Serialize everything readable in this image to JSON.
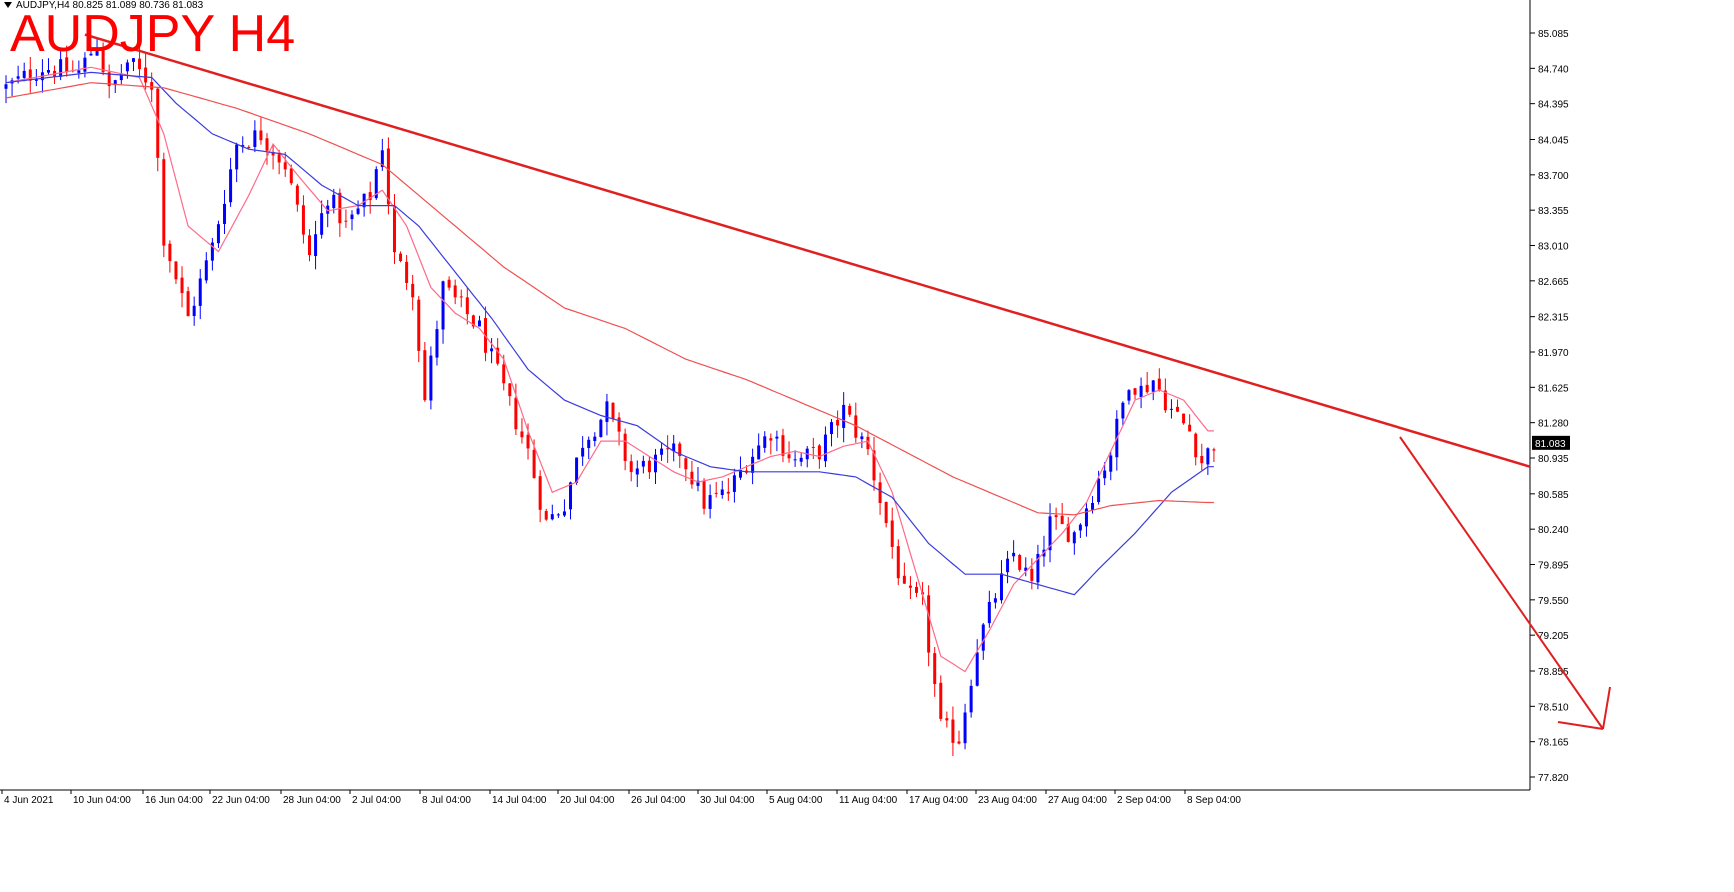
{
  "header": {
    "symbol_line": "AUDJPY,H4  80.825 81.089 80.736 81.083",
    "title": "AUDJPY H4"
  },
  "colors": {
    "bull_candle": "#0000ff",
    "bear_candle": "#ff0000",
    "ma_fast": "#ff6a8a",
    "ma_mid": "#3b3bdf",
    "ma_slow": "#f05050",
    "trendline": "#e02020",
    "arrow": "#e02020",
    "axis": "#000000",
    "price_label_bg": "#000000",
    "price_label_text": "#ffffff"
  },
  "chart_data": {
    "type": "candlestick",
    "title": "AUDJPY H4",
    "current_price": "81.083",
    "ylim": [
      77.6,
      85.3
    ],
    "y_ticks": [
      "85.085",
      "84.740",
      "84.395",
      "84.045",
      "83.700",
      "83.355",
      "83.010",
      "82.665",
      "82.315",
      "81.970",
      "81.625",
      "81.280",
      "80.935",
      "80.585",
      "80.240",
      "79.895",
      "79.550",
      "79.205",
      "78.855",
      "78.510",
      "78.165",
      "77.820"
    ],
    "x_labels": [
      "4 Jun 2021",
      "10 Jun 04:00",
      "16 Jun 04:00",
      "22 Jun 04:00",
      "28 Jun 04:00",
      "2 Jul 04:00",
      "8 Jul 04:00",
      "14 Jul 04:00",
      "20 Jul 04:00",
      "26 Jul 04:00",
      "30 Jul 04:00",
      "5 Aug 04:00",
      "11 Aug 04:00",
      "17 Aug 04:00",
      "23 Aug 04:00",
      "27 Aug 04:00",
      "2 Sep 04:00",
      "8 Sep 04:00"
    ],
    "candle_count": 200,
    "price_path": [
      [
        0,
        84.55
      ],
      [
        6,
        84.75
      ],
      [
        12,
        84.7
      ],
      [
        15,
        85.0
      ],
      [
        17,
        84.5
      ],
      [
        20,
        84.8
      ],
      [
        24,
        84.6
      ],
      [
        26,
        83.1
      ],
      [
        30,
        82.3
      ],
      [
        34,
        83.0
      ],
      [
        38,
        84.0
      ],
      [
        42,
        84.1
      ],
      [
        46,
        83.8
      ],
      [
        50,
        82.9
      ],
      [
        53,
        83.5
      ],
      [
        56,
        83.2
      ],
      [
        60,
        83.5
      ],
      [
        62,
        84.0
      ],
      [
        64,
        82.9
      ],
      [
        67,
        82.6
      ],
      [
        69,
        81.5
      ],
      [
        72,
        82.6
      ],
      [
        75,
        82.4
      ],
      [
        78,
        82.2
      ],
      [
        82,
        81.6
      ],
      [
        86,
        81.0
      ],
      [
        89,
        80.3
      ],
      [
        92,
        80.5
      ],
      [
        95,
        81.1
      ],
      [
        99,
        81.4
      ],
      [
        103,
        80.8
      ],
      [
        107,
        80.9
      ],
      [
        111,
        81.0
      ],
      [
        115,
        80.5
      ],
      [
        119,
        80.6
      ],
      [
        122,
        80.9
      ],
      [
        126,
        81.2
      ],
      [
        130,
        80.9
      ],
      [
        134,
        81.0
      ],
      [
        138,
        81.4
      ],
      [
        142,
        81.0
      ],
      [
        145,
        80.3
      ],
      [
        148,
        79.6
      ],
      [
        151,
        79.5
      ],
      [
        154,
        78.3
      ],
      [
        157,
        78.2
      ],
      [
        160,
        79.1
      ],
      [
        163,
        79.6
      ],
      [
        166,
        80.0
      ],
      [
        169,
        79.7
      ],
      [
        172,
        80.3
      ],
      [
        176,
        80.2
      ],
      [
        179,
        80.6
      ],
      [
        182,
        81.0
      ],
      [
        185,
        81.7
      ],
      [
        187,
        81.6
      ],
      [
        189,
        81.7
      ],
      [
        192,
        81.4
      ],
      [
        195,
        81.2
      ],
      [
        197,
        80.9
      ],
      [
        199,
        81.08
      ]
    ],
    "series": [
      {
        "name": "",
        "kind": "ma",
        "color": "#ff6a8a",
        "values": [
          [
            0,
            84.6
          ],
          [
            14,
            84.75
          ],
          [
            22,
            84.65
          ],
          [
            26,
            84.1
          ],
          [
            30,
            83.2
          ],
          [
            35,
            82.95
          ],
          [
            40,
            83.5
          ],
          [
            44,
            84.0
          ],
          [
            48,
            83.7
          ],
          [
            53,
            83.35
          ],
          [
            58,
            83.4
          ],
          [
            62,
            83.55
          ],
          [
            66,
            83.2
          ],
          [
            70,
            82.6
          ],
          [
            74,
            82.35
          ],
          [
            78,
            82.2
          ],
          [
            82,
            81.9
          ],
          [
            86,
            81.2
          ],
          [
            90,
            80.6
          ],
          [
            94,
            80.7
          ],
          [
            98,
            81.1
          ],
          [
            102,
            81.1
          ],
          [
            106,
            80.95
          ],
          [
            110,
            80.8
          ],
          [
            114,
            80.7
          ],
          [
            118,
            80.75
          ],
          [
            122,
            80.85
          ],
          [
            126,
            80.95
          ],
          [
            130,
            81.0
          ],
          [
            134,
            80.95
          ],
          [
            138,
            81.05
          ],
          [
            142,
            81.1
          ],
          [
            146,
            80.6
          ],
          [
            150,
            79.8
          ],
          [
            154,
            79.0
          ],
          [
            158,
            78.85
          ],
          [
            162,
            79.25
          ],
          [
            166,
            79.7
          ],
          [
            170,
            79.95
          ],
          [
            174,
            80.2
          ],
          [
            178,
            80.5
          ],
          [
            182,
            81.0
          ],
          [
            186,
            81.5
          ],
          [
            190,
            81.6
          ],
          [
            194,
            81.5
          ],
          [
            198,
            81.2
          ]
        ]
      },
      {
        "name": "",
        "kind": "ma",
        "color": "#3b3bdf",
        "values": [
          [
            0,
            84.6
          ],
          [
            14,
            84.7
          ],
          [
            24,
            84.65
          ],
          [
            28,
            84.4
          ],
          [
            34,
            84.1
          ],
          [
            40,
            83.95
          ],
          [
            46,
            83.9
          ],
          [
            52,
            83.6
          ],
          [
            58,
            83.4
          ],
          [
            64,
            83.4
          ],
          [
            68,
            83.2
          ],
          [
            74,
            82.75
          ],
          [
            80,
            82.3
          ],
          [
            86,
            81.8
          ],
          [
            92,
            81.5
          ],
          [
            98,
            81.35
          ],
          [
            104,
            81.25
          ],
          [
            110,
            81.0
          ],
          [
            116,
            80.85
          ],
          [
            122,
            80.8
          ],
          [
            128,
            80.8
          ],
          [
            134,
            80.8
          ],
          [
            140,
            80.75
          ],
          [
            146,
            80.55
          ],
          [
            152,
            80.1
          ],
          [
            158,
            79.8
          ],
          [
            164,
            79.8
          ],
          [
            170,
            79.7
          ],
          [
            176,
            79.6
          ],
          [
            180,
            79.85
          ],
          [
            186,
            80.2
          ],
          [
            192,
            80.6
          ],
          [
            198,
            80.85
          ]
        ]
      },
      {
        "name": "",
        "kind": "ma",
        "color": "#f05050",
        "values": [
          [
            0,
            84.45
          ],
          [
            14,
            84.6
          ],
          [
            26,
            84.55
          ],
          [
            38,
            84.35
          ],
          [
            50,
            84.1
          ],
          [
            62,
            83.8
          ],
          [
            72,
            83.3
          ],
          [
            82,
            82.8
          ],
          [
            92,
            82.4
          ],
          [
            102,
            82.2
          ],
          [
            112,
            81.9
          ],
          [
            122,
            81.7
          ],
          [
            132,
            81.45
          ],
          [
            140,
            81.25
          ],
          [
            148,
            81.0
          ],
          [
            156,
            80.75
          ],
          [
            164,
            80.55
          ],
          [
            170,
            80.4
          ],
          [
            176,
            80.38
          ],
          [
            182,
            80.47
          ],
          [
            190,
            80.52
          ],
          [
            198,
            80.5
          ]
        ]
      }
    ],
    "trendline": [
      [
        13,
        85.07
      ],
      [
        200,
        81.55
      ]
    ],
    "trendline_ext_price_at_right": 80.85,
    "annotation": "downward-arrow"
  }
}
